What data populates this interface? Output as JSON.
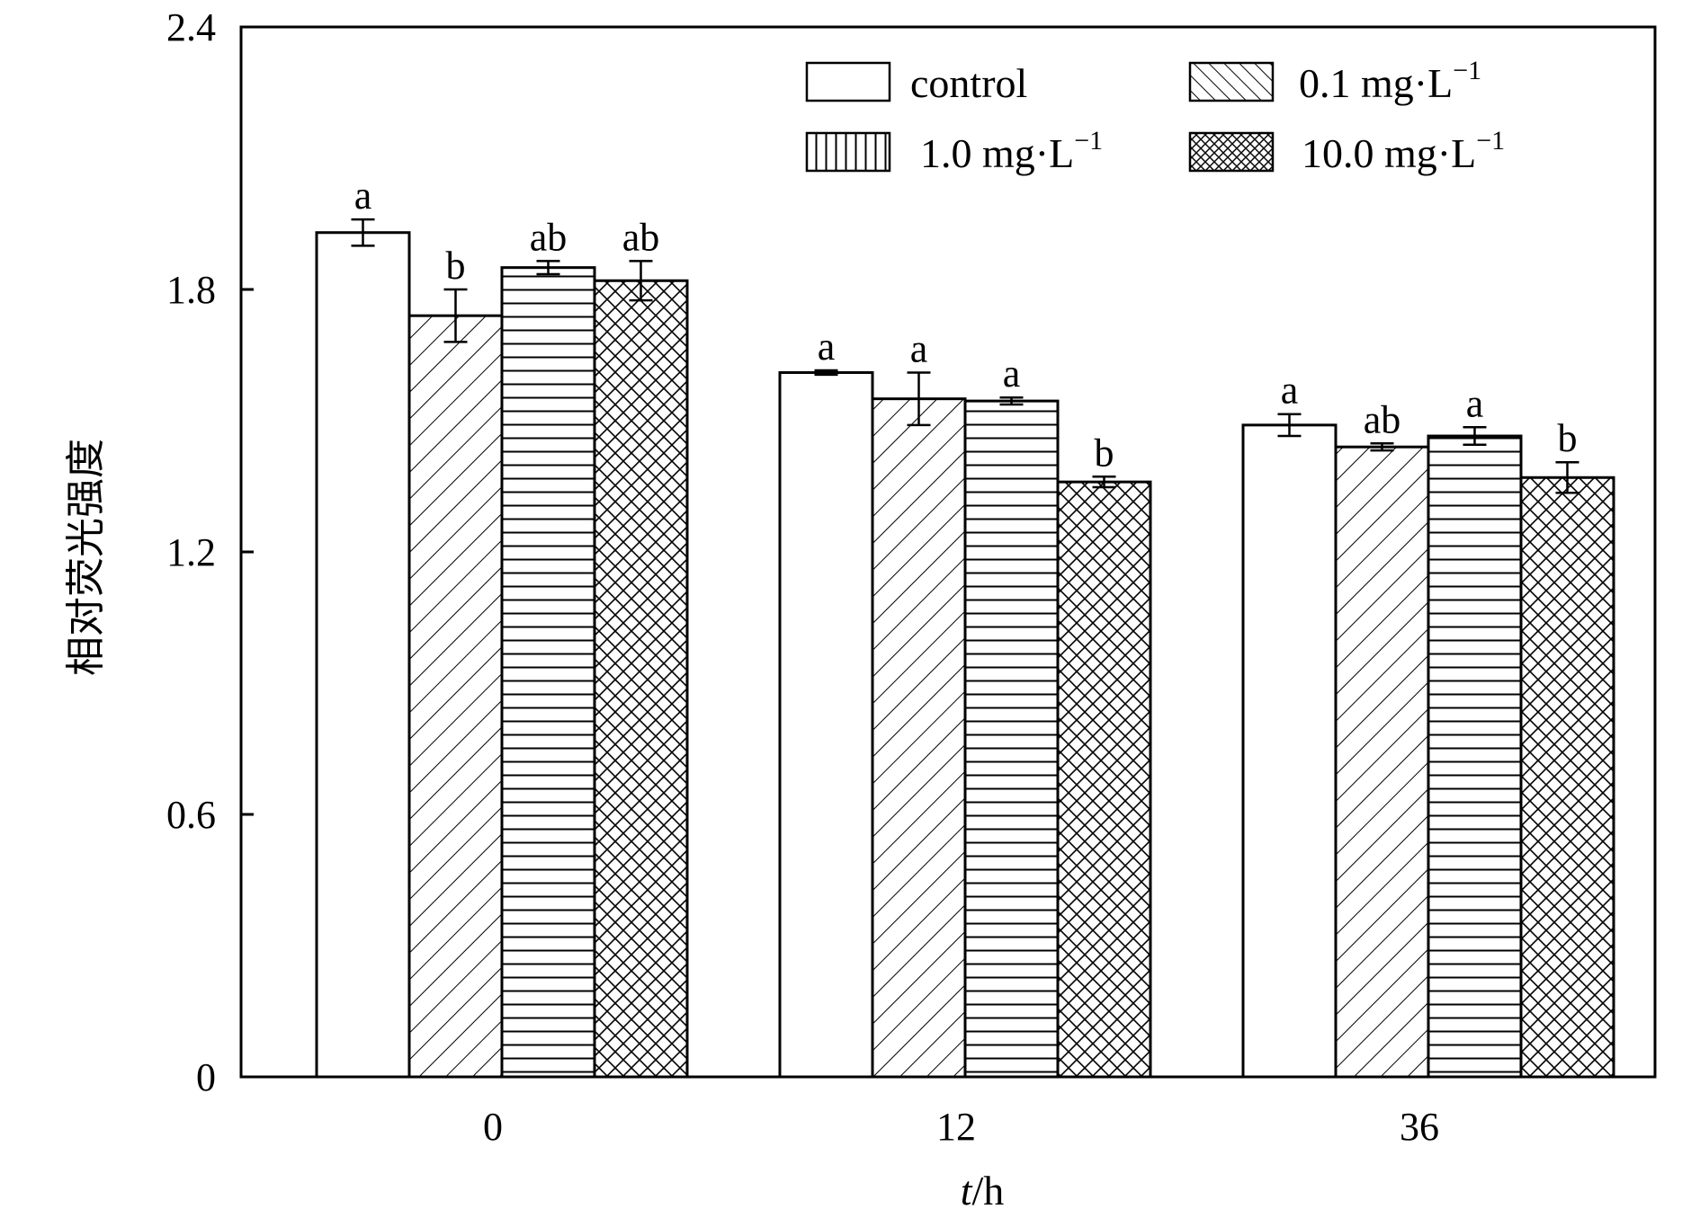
{
  "chart_data": {
    "type": "bar",
    "title": "",
    "xlabel": "t/h",
    "xlabel_italic": "t",
    "xlabel_rest": "/h",
    "ylabel": "相对荧光强度",
    "categories": [
      "0",
      "12",
      "36"
    ],
    "ylim": [
      0,
      2.4
    ],
    "yticks": [
      "0",
      "0.6",
      "1.2",
      "1.8",
      "2.4"
    ],
    "ytick_values": [
      0,
      0.6,
      1.2,
      1.8,
      2.4
    ],
    "grid": false,
    "legend_position": "top-right",
    "series": [
      {
        "name": "control",
        "name_base": "control",
        "name_sup": "",
        "pattern": "empty",
        "values": [
          1.93,
          1.61,
          1.49
        ],
        "errors": [
          0.03,
          0.005,
          0.025
        ],
        "labels": [
          "a",
          "a",
          "a"
        ]
      },
      {
        "name": "0.1 mg·L−1",
        "name_base": "0.1 mg·L",
        "name_sup": "−1",
        "pattern": "diagonal",
        "values": [
          1.74,
          1.55,
          1.44
        ],
        "errors": [
          0.06,
          0.06,
          0.008
        ],
        "labels": [
          "b",
          "a",
          "ab"
        ]
      },
      {
        "name": "1.0 mg·L−1",
        "name_base": "1.0 mg·L",
        "name_sup": "−1",
        "pattern": "horizontal",
        "values": [
          1.85,
          1.545,
          1.465
        ],
        "errors": [
          0.015,
          0.008,
          0.02
        ],
        "labels": [
          "ab",
          "a",
          "a"
        ]
      },
      {
        "name": "10.0 mg·L−1",
        "name_base": "10.0 mg·L",
        "name_sup": "−1",
        "pattern": "crosshatch",
        "values": [
          1.82,
          1.36,
          1.37
        ],
        "errors": [
          0.045,
          0.012,
          0.035
        ],
        "labels": [
          "ab",
          "b",
          "b"
        ]
      }
    ],
    "legend_pattern_hint": {
      "0.1 mg·L−1": "diagonal-back",
      "1.0 mg·L−1": "vertical"
    }
  }
}
